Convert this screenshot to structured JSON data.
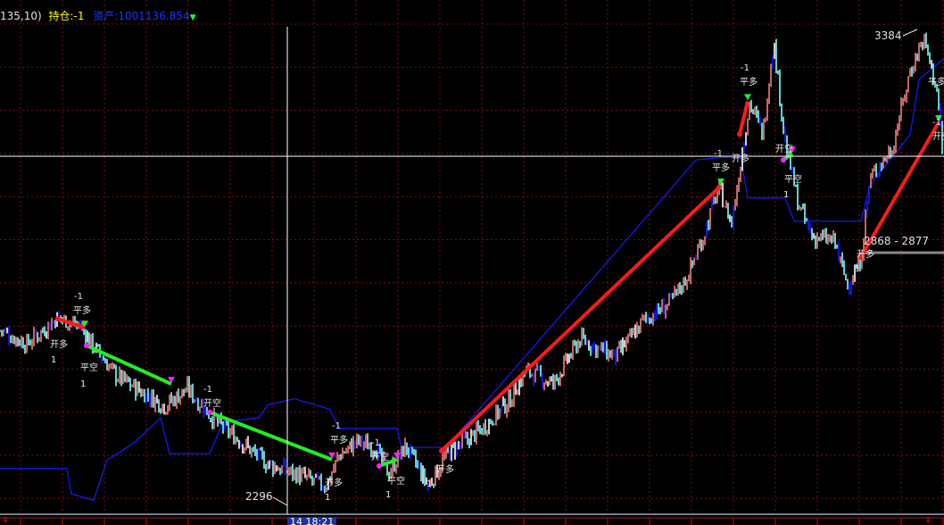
{
  "header": {
    "params": "135,10)",
    "position_label": "持仓:-1",
    "asset_label": "资产:1001136.854",
    "asset_arrow": "▼",
    "colors": {
      "params": "#e0e0e0",
      "position": "#ffff00",
      "asset": "#2233ff",
      "arrow": "#22ff22"
    }
  },
  "chart_data": {
    "type": "line",
    "title": "",
    "xlabel": "",
    "ylabel": "",
    "ylim": [
      2296,
      3384
    ],
    "grid": true,
    "price_path": [
      [
        0,
        2687
      ],
      [
        30,
        2655
      ],
      [
        65,
        2718
      ],
      [
        90,
        2697
      ],
      [
        110,
        2634
      ],
      [
        130,
        2581
      ],
      [
        160,
        2539
      ],
      [
        185,
        2507
      ],
      [
        210,
        2549
      ],
      [
        240,
        2475
      ],
      [
        270,
        2423
      ],
      [
        300,
        2370
      ],
      [
        330,
        2349
      ],
      [
        365,
        2317
      ],
      [
        380,
        2391
      ],
      [
        400,
        2423
      ],
      [
        420,
        2412
      ],
      [
        435,
        2349
      ],
      [
        455,
        2412
      ],
      [
        480,
        2317
      ],
      [
        500,
        2391
      ],
      [
        540,
        2454
      ],
      [
        570,
        2518
      ],
      [
        590,
        2592
      ],
      [
        620,
        2560
      ],
      [
        650,
        2666
      ],
      [
        690,
        2623
      ],
      [
        720,
        2708
      ],
      [
        750,
        2750
      ],
      [
        770,
        2813
      ],
      [
        790,
        2919
      ],
      [
        805,
        3025
      ],
      [
        820,
        2940
      ],
      [
        840,
        3226
      ],
      [
        855,
        3152
      ],
      [
        867,
        3373
      ],
      [
        880,
        3130
      ],
      [
        895,
        2983
      ],
      [
        910,
        2909
      ],
      [
        935,
        2898
      ],
      [
        950,
        2792
      ],
      [
        965,
        2856
      ],
      [
        975,
        3046
      ],
      [
        1000,
        3120
      ],
      [
        1020,
        3299
      ],
      [
        1035,
        3380
      ],
      [
        1050,
        3257
      ],
      [
        1058,
        3067
      ]
    ],
    "indicator_line": [
      [
        0,
        2360
      ],
      [
        75,
        2360
      ],
      [
        80,
        2300
      ],
      [
        105,
        2285
      ],
      [
        120,
        2380
      ],
      [
        150,
        2420
      ],
      [
        180,
        2480
      ],
      [
        190,
        2395
      ],
      [
        235,
        2395
      ],
      [
        250,
        2470
      ],
      [
        290,
        2480
      ],
      [
        300,
        2510
      ],
      [
        330,
        2525
      ],
      [
        370,
        2500
      ],
      [
        380,
        2455
      ],
      [
        445,
        2455
      ],
      [
        450,
        2410
      ],
      [
        500,
        2410
      ],
      [
        780,
        3090
      ],
      [
        830,
        3100
      ],
      [
        838,
        3000
      ],
      [
        880,
        3000
      ],
      [
        890,
        2945
      ],
      [
        965,
        2945
      ],
      [
        975,
        3030
      ],
      [
        1020,
        3150
      ],
      [
        1030,
        3280
      ],
      [
        1058,
        3330
      ]
    ],
    "trades": [
      {
        "side": "long",
        "from": [
          65,
          2714
        ],
        "to": [
          95,
          2693
        ]
      },
      {
        "side": "short",
        "from": [
          97,
          2651
        ],
        "to": [
          192,
          2560
        ]
      },
      {
        "side": "short",
        "from": [
          235,
          2493
        ],
        "to": [
          372,
          2381
        ]
      },
      {
        "side": "short",
        "from": [
          425,
          2366
        ],
        "to": [
          445,
          2381
        ]
      },
      {
        "side": "long",
        "from": [
          495,
          2402
        ],
        "to": [
          808,
          3029
        ]
      },
      {
        "side": "long",
        "from": [
          829,
          3151
        ],
        "to": [
          838,
          3229
        ]
      },
      {
        "side": "short",
        "from": [
          878,
          3090
        ],
        "to": [
          888,
          3105
        ]
      },
      {
        "side": "long",
        "from": [
          965,
          2860
        ],
        "to": [
          1052,
          3179
        ]
      }
    ],
    "price_labels": {
      "high": "3384",
      "low": "2296",
      "range": "2868 - 2877"
    },
    "time_label": "14 18:21",
    "signals": [
      "-1",
      "平多",
      "开多",
      "1",
      "平空",
      "1",
      "-1",
      "开空",
      "-1",
      "平多",
      "开多",
      "1",
      "-1",
      "开空",
      "平空",
      "1",
      "开多",
      "1",
      "-1",
      "平多",
      "-1",
      "平多",
      "开多",
      "开空",
      "平空",
      "1",
      "开多",
      "1",
      "平多",
      "-1",
      "开空"
    ],
    "colors": {
      "up": "#f08080",
      "down": "#7fffff",
      "blue": "#1a1aff",
      "long": "#ff1a1a",
      "short": "#22ee22",
      "grid": "#7a1010",
      "crosshair": "#ffffff"
    }
  }
}
